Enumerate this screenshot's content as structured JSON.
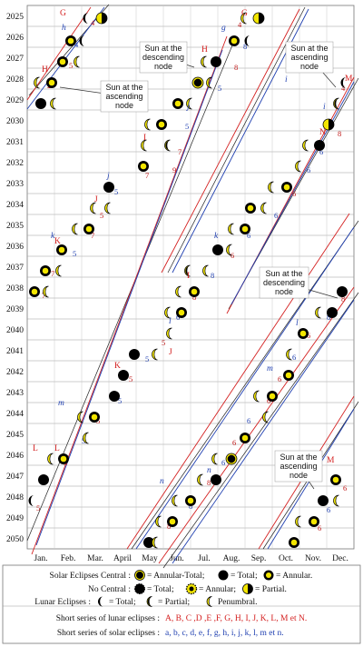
{
  "years": [
    "2025",
    "2026",
    "2027",
    "2028",
    "2029",
    "2030",
    "2031",
    "2032",
    "2033",
    "2034",
    "2035",
    "2036",
    "2037",
    "2038",
    "2039",
    "2040",
    "2041",
    "2042",
    "2043",
    "2044",
    "2045",
    "2046",
    "2047",
    "2048",
    "2049",
    "2050"
  ],
  "months": [
    "Jan.",
    "Feb.",
    "Mar.",
    "April",
    "May",
    "Jun.",
    "Jul.",
    "Aug.",
    "Sep.",
    "Oct.",
    "Nov.",
    "Dec."
  ],
  "callouts": [
    {
      "id": "asc1",
      "text": [
        "Sun at the",
        "ascending",
        "node"
      ]
    },
    {
      "id": "desc1",
      "text": [
        "Sun at the",
        "descending",
        "node"
      ]
    },
    {
      "id": "asc2",
      "text": [
        "Sun at the",
        "ascending",
        "node"
      ]
    },
    {
      "id": "desc2",
      "text": [
        "Sun at the",
        "descending",
        "node"
      ]
    },
    {
      "id": "asc3",
      "text": [
        "Sun at the",
        "ascending",
        "node"
      ]
    }
  ],
  "red_labels": [
    "G",
    "H",
    "G",
    "H",
    "I",
    "J",
    "K",
    "L",
    "M",
    "N",
    "I",
    "J",
    "K",
    "L",
    "M"
  ],
  "blue_labels": [
    "h",
    "g",
    "i",
    "j",
    "k",
    "l",
    "m",
    "n",
    "i",
    "j",
    "k",
    "l",
    "m",
    "n"
  ],
  "legend": {
    "row1_label": "Solar Eclipses Central :",
    "row1_items": [
      "= Annular-Total;",
      "= Total;",
      "= Annular."
    ],
    "row2_label": "No Central :",
    "row2_items": [
      "= Total;",
      "= Annular;",
      "= Partial."
    ],
    "row3_label": "Lunar Eclipses :",
    "row3_items": [
      "= Total;",
      "= Partial;",
      "Penumbral."
    ],
    "lunar_series_label": "Short series of lunar eclipses :",
    "lunar_series_value": "A, B, C ,D ,E ,F, G, H, I, J, K, L, M et N.",
    "solar_series_label": "Short series of solar eclipses :",
    "solar_series_value": "a, b, c, d, e, f, g, h, i, j, k, l, m et n."
  },
  "colors": {
    "red": "#d42020",
    "blue": "#1f3fb0",
    "yellow": "#f3e600",
    "grid": "#9a9a9a"
  }
}
